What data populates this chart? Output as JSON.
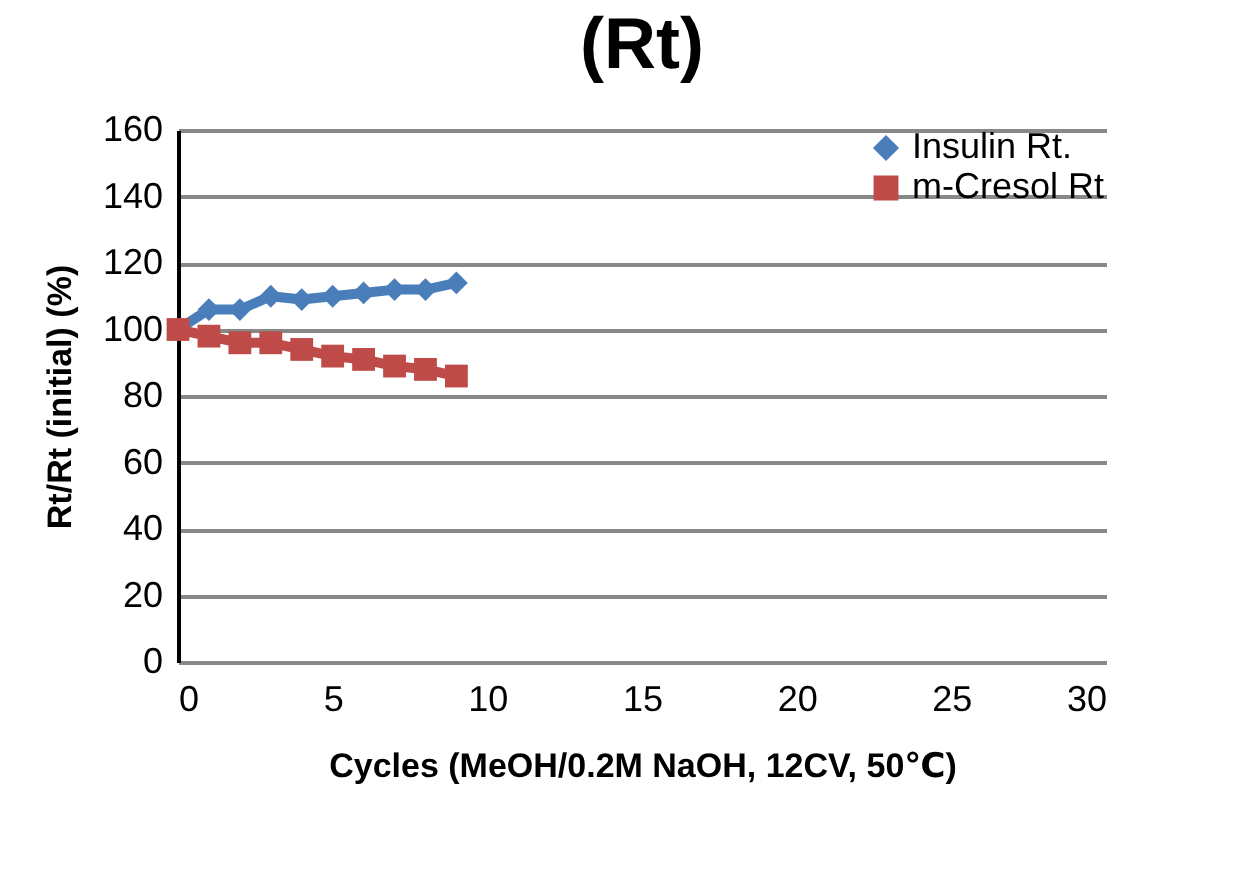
{
  "chart_data": {
    "type": "line",
    "title": "(Rt)",
    "xlabel": "Cycles (MeOH/0.2M NaOH, 12CV, 50℃)",
    "ylabel": "Rt/Rt (initial) (%)",
    "x": [
      0,
      1,
      2,
      3,
      4,
      5,
      6,
      7,
      8,
      9
    ],
    "series": [
      {
        "name": "Insulin Rt.",
        "color": "#4a7ebb",
        "marker": "diamond",
        "values": [
          100,
          106,
          106,
          110,
          109,
          110,
          111,
          112,
          112,
          114
        ]
      },
      {
        "name": "m-Cresol Rt",
        "color": "#be4b48",
        "marker": "square",
        "values": [
          100,
          98,
          96,
          96,
          94,
          92,
          91,
          89,
          88,
          86
        ]
      }
    ],
    "xlim": [
      0,
      30
    ],
    "xticks": [
      0,
      5,
      10,
      15,
      20,
      25,
      30
    ],
    "ylim": [
      0,
      160
    ],
    "yticks": [
      0,
      20,
      40,
      60,
      80,
      100,
      120,
      140,
      160
    ],
    "grid": "y",
    "legend": "top right"
  }
}
